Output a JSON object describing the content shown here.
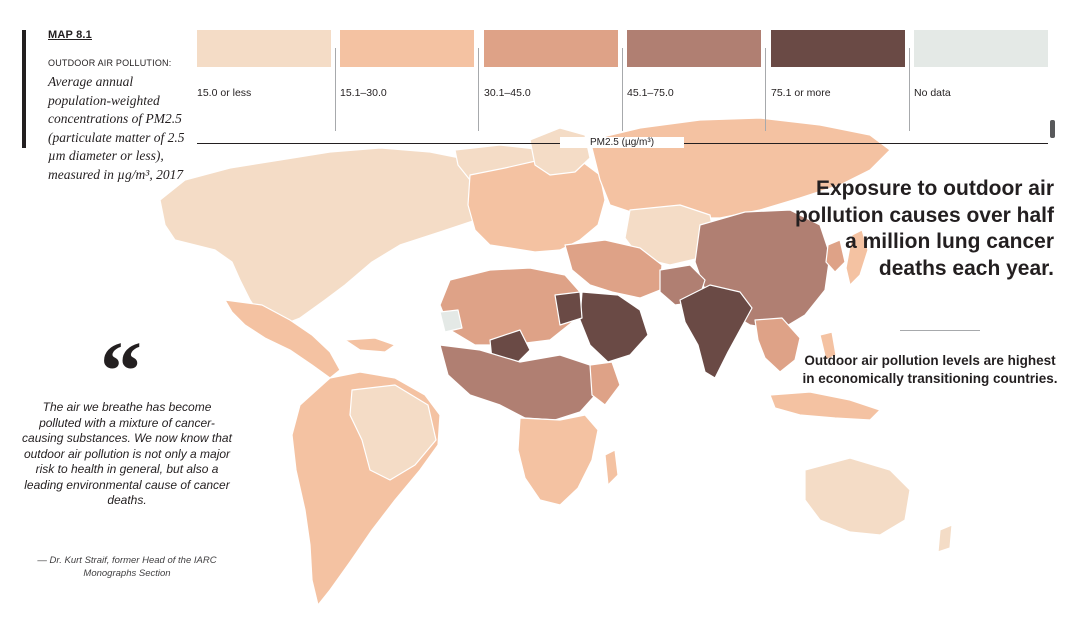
{
  "map": {
    "number": "MAP 8.1",
    "label": "OUTDOOR AIR POLLUTION:",
    "description": "Average annual population-weighted concentrations of PM2.5 (particulate matter of 2.5 µm diameter or less), measured in µg/m³, 2017",
    "unit_label": "PM2.5 (µg/m³)"
  },
  "legend": [
    {
      "label": "15.0 or less",
      "color": "#f4dcc6"
    },
    {
      "label": "15.1–30.0",
      "color": "#f4c2a2"
    },
    {
      "label": "30.1–45.0",
      "color": "#dea287"
    },
    {
      "label": "45.1–75.0",
      "color": "#b07f72"
    },
    {
      "label": "75.1 or more",
      "color": "#6a4a45"
    },
    {
      "label": "No data",
      "color": "#e4e9e6"
    }
  ],
  "headline": "Exposure to outdoor air pollution causes over half a million lung cancer deaths each year.",
  "subtext": "Outdoor air pollution levels are highest in economically transitioning countries.",
  "quote": {
    "mark": "“",
    "text": "The air we breathe has become polluted with a mixture of cancer-causing substances. We now know that outdoor air pollution is not only a major risk to health in general, but also a leading environmental cause of cancer deaths.",
    "attribution": "— Dr. Kurt Straif, former Head of the IARC Monographs Section"
  }
}
